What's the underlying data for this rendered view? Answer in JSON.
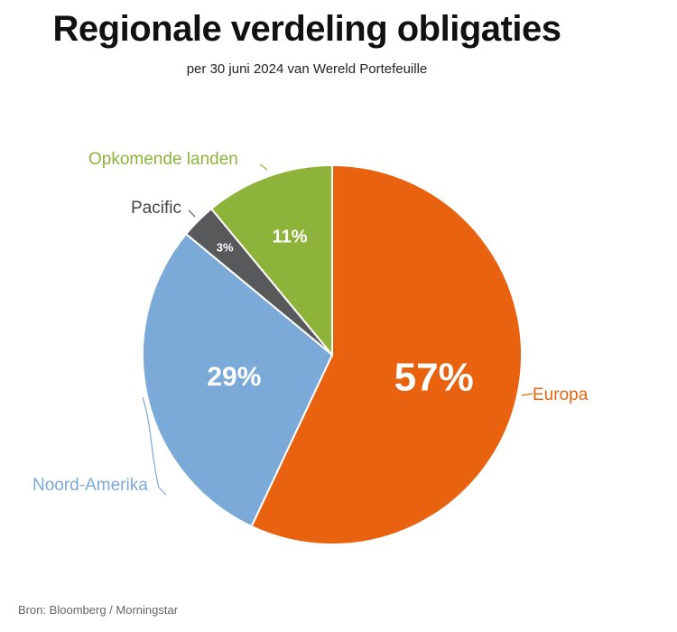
{
  "title": "Regionale verdeling obligaties",
  "subtitle": "per 30 juni 2024 van Wereld Portefeuille",
  "source": "Bron: Bloomberg / Morningstar",
  "chart_data": {
    "type": "pie",
    "title": "Regionale verdeling obligaties",
    "subtitle": "per 30 juni 2024 van Wereld Portefeuille",
    "slices": [
      {
        "label": "Europa",
        "value": 57,
        "value_label": "57%",
        "color": "#E8620F"
      },
      {
        "label": "Noord-Amerika",
        "value": 29,
        "value_label": "29%",
        "color": "#7BA9D8"
      },
      {
        "label": "Pacific",
        "value": 3,
        "value_label": "3%",
        "color": "#58595B"
      },
      {
        "label": "Opkomende landen",
        "value": 11,
        "value_label": "11%",
        "color": "#8DB33A"
      }
    ],
    "start_angle": "12 o'clock",
    "direction": "clockwise"
  }
}
